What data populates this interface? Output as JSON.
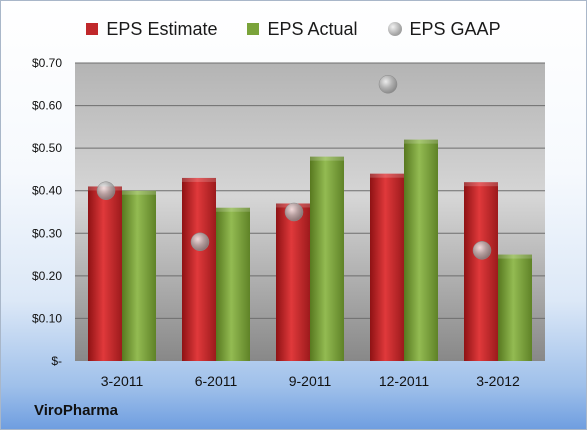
{
  "company": "ViroPharma",
  "chart_data": {
    "type": "bar",
    "categories": [
      "3-2011",
      "6-2011",
      "9-2011",
      "12-2011",
      "3-2012"
    ],
    "series": [
      {
        "name": "EPS Estimate",
        "type": "bar",
        "color": "#c0282b",
        "values": [
          0.41,
          0.43,
          0.37,
          0.44,
          0.42
        ]
      },
      {
        "name": "EPS Actual",
        "type": "bar",
        "color": "#7aa33a",
        "values": [
          0.4,
          0.36,
          0.48,
          0.52,
          0.25
        ]
      },
      {
        "name": "EPS GAAP",
        "type": "scatter",
        "color": "#b5b5b5",
        "values": [
          0.4,
          0.28,
          0.35,
          0.65,
          0.26
        ]
      }
    ],
    "yticks": [
      "$-",
      "$0.10",
      "$0.20",
      "$0.30",
      "$0.40",
      "$0.50",
      "$0.60",
      "$0.70"
    ],
    "ylim": [
      0,
      0.7
    ],
    "grid": true,
    "legend_position": "top"
  }
}
